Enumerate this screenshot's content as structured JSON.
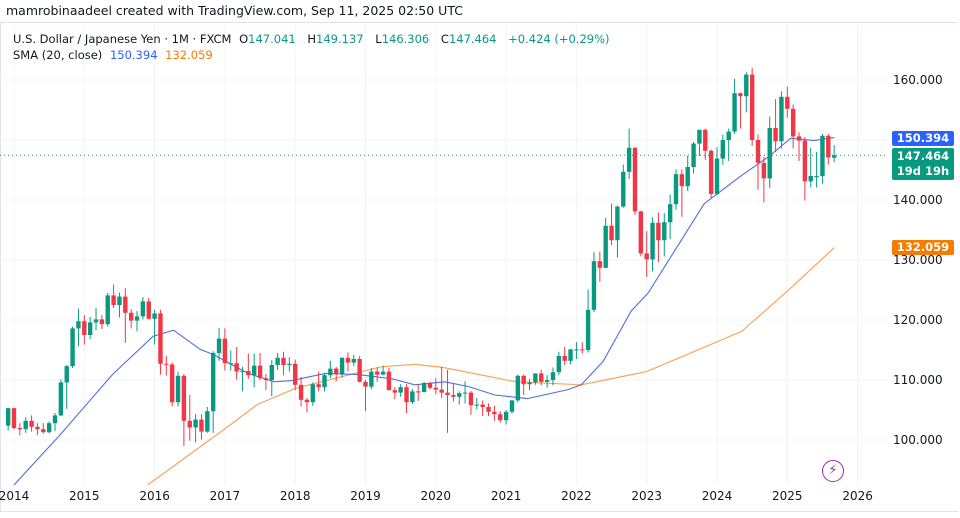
{
  "credit": "mamrobinaadeel created with TradingView.com, Sep 11, 2025 02:50 UTC",
  "legend": {
    "symbol": "U.S. Dollar / Japanese Yen · 1M · FXCM",
    "o_label": "O",
    "o": "147.041",
    "h_label": "H",
    "h": "149.137",
    "l_label": "L",
    "l": "146.306",
    "c_label": "C",
    "c": "147.464",
    "change": "+0.424 (+0.29%)",
    "sma_label": "SMA (20, close)",
    "sma_blue": "150.394",
    "sma_orange": "132.059"
  },
  "price_labels": {
    "sma_blue": "150.394",
    "last": "147.464",
    "countdown": "19d 19h",
    "sma_orange": "132.059"
  },
  "colors": {
    "up": "#089981",
    "down": "#f23645",
    "sma_blue": "#2962ff",
    "sma_orange": "#f57c00",
    "last_price": "#089981",
    "indicator_icon": "#9c27b0"
  },
  "icons": {
    "indicator": "lightning-icon"
  },
  "chart_data": {
    "type": "candlestick",
    "title": "U.S. Dollar / Japanese Yen · 1M · FXCM",
    "interval": "monthly",
    "start_month": "2013-12",
    "ohlc_fields": [
      "open",
      "high",
      "low",
      "close"
    ],
    "ohlc": [
      [
        102.4,
        105.4,
        101.6,
        105.3
      ],
      [
        105.3,
        105.4,
        101.8,
        102.0
      ],
      [
        102.0,
        102.8,
        100.8,
        101.8
      ],
      [
        101.8,
        103.8,
        101.2,
        103.2
      ],
      [
        103.2,
        104.1,
        101.4,
        102.2
      ],
      [
        102.2,
        102.8,
        100.8,
        101.8
      ],
      [
        101.8,
        102.8,
        101.1,
        101.3
      ],
      [
        101.3,
        103.1,
        101.1,
        102.8
      ],
      [
        102.8,
        104.5,
        101.5,
        104.1
      ],
      [
        104.1,
        110.1,
        104.0,
        109.6
      ],
      [
        109.6,
        112.5,
        105.2,
        112.3
      ],
      [
        112.3,
        118.9,
        112.0,
        118.6
      ],
      [
        118.6,
        121.9,
        115.6,
        119.8
      ],
      [
        119.8,
        120.8,
        115.9,
        117.5
      ],
      [
        117.5,
        120.5,
        116.8,
        119.6
      ],
      [
        119.6,
        122.0,
        118.3,
        120.1
      ],
      [
        120.1,
        120.8,
        118.5,
        119.3
      ],
      [
        119.3,
        124.5,
        118.9,
        124.1
      ],
      [
        124.1,
        125.9,
        122.0,
        122.5
      ],
      [
        122.5,
        124.6,
        120.4,
        123.9
      ],
      [
        123.9,
        125.3,
        116.2,
        121.2
      ],
      [
        121.2,
        121.8,
        118.6,
        119.9
      ],
      [
        119.9,
        121.5,
        118.1,
        120.6
      ],
      [
        120.6,
        123.8,
        120.1,
        123.1
      ],
      [
        123.1,
        123.7,
        120.1,
        120.2
      ],
      [
        120.2,
        121.7,
        115.9,
        121.1
      ],
      [
        121.1,
        121.7,
        110.9,
        112.7
      ],
      [
        112.7,
        114.0,
        110.7,
        112.6
      ],
      [
        112.6,
        112.9,
        105.6,
        106.3
      ],
      [
        106.3,
        111.4,
        105.6,
        110.7
      ],
      [
        110.7,
        111.0,
        99.0,
        103.2
      ],
      [
        103.2,
        107.5,
        99.9,
        102.1
      ],
      [
        102.1,
        104.3,
        99.6,
        103.4
      ],
      [
        103.4,
        104.3,
        100.1,
        101.4
      ],
      [
        101.4,
        105.5,
        101.2,
        104.8
      ],
      [
        104.8,
        114.8,
        101.2,
        114.5
      ],
      [
        114.5,
        118.7,
        113.2,
        116.9
      ],
      [
        116.9,
        118.6,
        111.6,
        112.8
      ],
      [
        112.8,
        114.9,
        111.6,
        112.8
      ],
      [
        112.8,
        115.5,
        110.1,
        111.4
      ],
      [
        111.4,
        112.2,
        108.1,
        111.5
      ],
      [
        111.5,
        114.4,
        110.2,
        110.8
      ],
      [
        110.8,
        114.4,
        108.8,
        112.4
      ],
      [
        112.4,
        114.5,
        110.0,
        110.3
      ],
      [
        110.3,
        111.0,
        108.3,
        110.0
      ],
      [
        110.0,
        113.3,
        107.3,
        112.5
      ],
      [
        112.5,
        114.5,
        111.7,
        113.7
      ],
      [
        113.7,
        114.7,
        110.8,
        112.5
      ],
      [
        112.5,
        113.8,
        111.4,
        112.7
      ],
      [
        112.7,
        113.4,
        108.3,
        109.2
      ],
      [
        109.2,
        110.5,
        105.6,
        106.7
      ],
      [
        106.7,
        107.0,
        104.6,
        106.3
      ],
      [
        106.3,
        109.6,
        105.7,
        109.3
      ],
      [
        109.3,
        111.4,
        108.1,
        108.8
      ],
      [
        108.8,
        111.0,
        108.1,
        110.8
      ],
      [
        110.8,
        113.2,
        110.3,
        111.9
      ],
      [
        111.9,
        112.2,
        109.8,
        111.0
      ],
      [
        111.0,
        113.8,
        110.4,
        113.7
      ],
      [
        113.7,
        114.6,
        111.4,
        112.9
      ],
      [
        112.9,
        114.2,
        112.3,
        113.5
      ],
      [
        113.5,
        114.0,
        109.6,
        109.7
      ],
      [
        109.7,
        110.0,
        104.8,
        108.9
      ],
      [
        108.9,
        112.0,
        108.5,
        111.4
      ],
      [
        111.4,
        112.1,
        109.7,
        110.9
      ],
      [
        110.9,
        112.4,
        110.8,
        111.4
      ],
      [
        111.4,
        112.0,
        108.3,
        108.3
      ],
      [
        108.3,
        108.8,
        106.8,
        107.9
      ],
      [
        107.9,
        109.3,
        107.2,
        108.8
      ],
      [
        108.8,
        109.3,
        104.5,
        106.3
      ],
      [
        106.3,
        108.5,
        106.0,
        108.1
      ],
      [
        108.1,
        109.3,
        106.5,
        108.0
      ],
      [
        108.0,
        109.7,
        107.9,
        109.5
      ],
      [
        109.5,
        109.7,
        108.4,
        108.7
      ],
      [
        108.7,
        110.3,
        107.6,
        108.4
      ],
      [
        108.4,
        112.2,
        107.0,
        107.9
      ],
      [
        107.9,
        111.7,
        101.2,
        107.5
      ],
      [
        107.5,
        109.4,
        106.4,
        107.2
      ],
      [
        107.2,
        108.1,
        105.9,
        107.8
      ],
      [
        107.8,
        109.8,
        106.1,
        107.9
      ],
      [
        107.9,
        108.2,
        104.2,
        105.8
      ],
      [
        105.8,
        107.0,
        105.1,
        105.9
      ],
      [
        105.9,
        106.6,
        104.0,
        105.5
      ],
      [
        105.5,
        106.1,
        104.0,
        104.7
      ],
      [
        104.7,
        105.7,
        103.2,
        104.3
      ],
      [
        104.3,
        104.8,
        102.9,
        103.3
      ],
      [
        103.3,
        105.0,
        102.6,
        104.7
      ],
      [
        104.7,
        106.7,
        104.4,
        106.6
      ],
      [
        106.6,
        110.9,
        106.3,
        110.7
      ],
      [
        110.7,
        110.9,
        107.5,
        109.3
      ],
      [
        109.3,
        110.2,
        108.3,
        109.6
      ],
      [
        109.6,
        111.1,
        109.2,
        111.1
      ],
      [
        111.1,
        111.7,
        109.1,
        109.7
      ],
      [
        109.7,
        110.8,
        108.7,
        110.0
      ],
      [
        110.0,
        112.1,
        109.1,
        111.3
      ],
      [
        111.3,
        114.7,
        110.8,
        114.0
      ],
      [
        114.0,
        115.5,
        112.5,
        113.2
      ],
      [
        113.2,
        115.2,
        112.6,
        115.1
      ],
      [
        115.1,
        116.3,
        113.5,
        115.1
      ],
      [
        115.1,
        116.3,
        114.4,
        115.0
      ],
      [
        115.0,
        125.1,
        114.6,
        121.7
      ],
      [
        121.7,
        131.3,
        121.3,
        129.8
      ],
      [
        129.8,
        131.4,
        126.4,
        128.7
      ],
      [
        128.7,
        137.0,
        128.6,
        135.7
      ],
      [
        135.7,
        139.4,
        132.5,
        133.3
      ],
      [
        133.3,
        139.1,
        130.4,
        138.9
      ],
      [
        138.9,
        145.9,
        138.7,
        144.7
      ],
      [
        144.7,
        151.9,
        143.5,
        148.7
      ],
      [
        148.7,
        148.8,
        137.5,
        138.1
      ],
      [
        138.1,
        138.2,
        130.6,
        131.1
      ],
      [
        131.1,
        134.8,
        127.2,
        130.1
      ],
      [
        130.1,
        137.1,
        128.1,
        136.2
      ],
      [
        136.2,
        137.9,
        129.6,
        133.3
      ],
      [
        133.3,
        137.8,
        130.6,
        136.3
      ],
      [
        136.3,
        140.9,
        133.5,
        139.3
      ],
      [
        139.3,
        145.1,
        138.4,
        144.3
      ],
      [
        144.3,
        145.1,
        137.2,
        142.3
      ],
      [
        142.3,
        147.4,
        141.5,
        145.5
      ],
      [
        145.5,
        149.7,
        144.4,
        149.4
      ],
      [
        149.4,
        151.7,
        147.3,
        151.7
      ],
      [
        151.7,
        151.9,
        146.7,
        148.2
      ],
      [
        148.2,
        148.4,
        140.3,
        141.0
      ],
      [
        141.0,
        148.8,
        140.8,
        146.9
      ],
      [
        146.9,
        150.9,
        145.9,
        150.0
      ],
      [
        150.0,
        151.9,
        146.5,
        151.4
      ],
      [
        151.4,
        160.2,
        151.0,
        157.8
      ],
      [
        157.8,
        157.9,
        151.9,
        157.3
      ],
      [
        157.3,
        161.3,
        154.6,
        160.9
      ],
      [
        160.9,
        162.0,
        149.0,
        150.0
      ],
      [
        150.0,
        150.9,
        141.7,
        146.2
      ],
      [
        146.2,
        147.2,
        139.6,
        143.6
      ],
      [
        143.6,
        153.9,
        142.0,
        152.0
      ],
      [
        152.0,
        156.8,
        148.0,
        149.8
      ],
      [
        149.8,
        158.1,
        148.6,
        157.2
      ],
      [
        157.2,
        158.9,
        153.7,
        155.2
      ],
      [
        155.2,
        155.9,
        148.6,
        150.6
      ],
      [
        150.6,
        151.3,
        146.5,
        149.9
      ],
      [
        149.9,
        150.5,
        139.9,
        143.1
      ],
      [
        143.1,
        148.7,
        142.1,
        144.0
      ],
      [
        144.0,
        148.0,
        142.1,
        144.0
      ],
      [
        144.0,
        151.0,
        142.7,
        150.7
      ],
      [
        150.7,
        151.0,
        145.9,
        147.1
      ],
      [
        147.041,
        149.137,
        146.306,
        147.464
      ]
    ],
    "sma_blue": [
      [
        2014.0,
        92.5
      ],
      [
        2014.65,
        100.8
      ],
      [
        2014.94,
        104.7
      ],
      [
        2015.4,
        110.9
      ],
      [
        2015.98,
        117.3
      ],
      [
        2016.27,
        118.3
      ],
      [
        2016.65,
        115.1
      ],
      [
        2016.84,
        114.2
      ],
      [
        2017.33,
        111.1
      ],
      [
        2017.7,
        109.7
      ],
      [
        2017.95,
        109.9
      ],
      [
        2018.43,
        111.1
      ],
      [
        2018.9,
        110.9
      ],
      [
        2019.38,
        110.2
      ],
      [
        2019.7,
        109.2
      ],
      [
        2020.13,
        109.7
      ],
      [
        2020.47,
        108.9
      ],
      [
        2020.84,
        107.5
      ],
      [
        2021.3,
        106.9
      ],
      [
        2021.88,
        108.4
      ],
      [
        2022.07,
        109.2
      ],
      [
        2022.38,
        113.1
      ],
      [
        2022.78,
        121.5
      ],
      [
        2023.02,
        124.5
      ],
      [
        2023.82,
        139.4
      ],
      [
        2024.35,
        144.1
      ],
      [
        2024.72,
        147.1
      ],
      [
        2025.05,
        150.3
      ],
      [
        2025.38,
        149.9
      ],
      [
        2025.67,
        150.394
      ]
    ],
    "sma_orange": [
      [
        2015.9,
        92.5
      ],
      [
        2016.9,
        101.0
      ],
      [
        2017.46,
        105.9
      ],
      [
        2018.0,
        108.6
      ],
      [
        2019.22,
        112.2
      ],
      [
        2019.7,
        112.6
      ],
      [
        2020.1,
        112.1
      ],
      [
        2021.14,
        109.7
      ],
      [
        2022.07,
        109.2
      ],
      [
        2023.0,
        111.4
      ],
      [
        2024.35,
        118.1
      ],
      [
        2025.0,
        124.8
      ],
      [
        2025.67,
        132.059
      ]
    ],
    "y_ticks": [
      "160.000",
      "140.000",
      "130.000",
      "120.000",
      "110.000",
      "100.000"
    ],
    "x_ticks": [
      "2014",
      "2015",
      "2016",
      "2017",
      "2018",
      "2019",
      "2020",
      "2021",
      "2022",
      "2023",
      "2024",
      "2025",
      "2026"
    ],
    "ylim": [
      91,
      167
    ],
    "grid": true
  }
}
